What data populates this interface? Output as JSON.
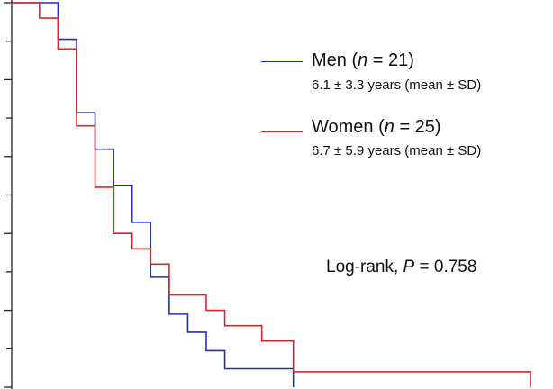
{
  "chart_data": {
    "type": "line",
    "step": true,
    "title": "",
    "xlabel": "",
    "ylabel": "",
    "xlim": [
      0,
      28
    ],
    "ylim": [
      0,
      1
    ],
    "grid": false,
    "legend_placement": "top-right",
    "series": [
      {
        "name_prefix": "Men (",
        "name_var": "n",
        "name_suffix": " = 21)",
        "subtitle": "6.1 ± 3.3 years (mean ± SD)",
        "color": "#1f2fbf",
        "points": [
          [
            0,
            1.0
          ],
          [
            2.5,
            1.0
          ],
          [
            2.5,
            0.905
          ],
          [
            3.5,
            0.905
          ],
          [
            3.5,
            0.714
          ],
          [
            4.5,
            0.714
          ],
          [
            4.5,
            0.619
          ],
          [
            5.5,
            0.619
          ],
          [
            5.5,
            0.524
          ],
          [
            6.5,
            0.524
          ],
          [
            6.5,
            0.429
          ],
          [
            7.5,
            0.429
          ],
          [
            7.5,
            0.286
          ],
          [
            8.5,
            0.286
          ],
          [
            8.5,
            0.19
          ],
          [
            9.5,
            0.19
          ],
          [
            9.5,
            0.143
          ],
          [
            10.5,
            0.143
          ],
          [
            10.5,
            0.095
          ],
          [
            11.5,
            0.095
          ],
          [
            11.5,
            0.048
          ],
          [
            15.2,
            0.048
          ],
          [
            15.2,
            0.0
          ]
        ]
      },
      {
        "name_prefix": "Women (",
        "name_var": "n",
        "name_suffix": " = 25)",
        "subtitle": "6.7 ± 5.9 years (mean ± SD)",
        "color": "#d62728",
        "points": [
          [
            0,
            1.0
          ],
          [
            1.5,
            1.0
          ],
          [
            1.5,
            0.96
          ],
          [
            2.5,
            0.96
          ],
          [
            2.5,
            0.88
          ],
          [
            3.5,
            0.88
          ],
          [
            3.5,
            0.68
          ],
          [
            4.5,
            0.68
          ],
          [
            4.5,
            0.52
          ],
          [
            5.5,
            0.52
          ],
          [
            5.5,
            0.4
          ],
          [
            6.5,
            0.4
          ],
          [
            6.5,
            0.36
          ],
          [
            7.5,
            0.36
          ],
          [
            7.5,
            0.32
          ],
          [
            8.5,
            0.32
          ],
          [
            8.5,
            0.24
          ],
          [
            10.5,
            0.24
          ],
          [
            10.5,
            0.2
          ],
          [
            11.5,
            0.2
          ],
          [
            11.5,
            0.16
          ],
          [
            13.5,
            0.16
          ],
          [
            13.5,
            0.12
          ],
          [
            15.2,
            0.12
          ],
          [
            15.2,
            0.04
          ],
          [
            28,
            0.04
          ],
          [
            28,
            0.0
          ]
        ]
      }
    ],
    "annotation": {
      "prefix": "Log-rank, ",
      "var": "P",
      "suffix": " = 0.758"
    }
  }
}
